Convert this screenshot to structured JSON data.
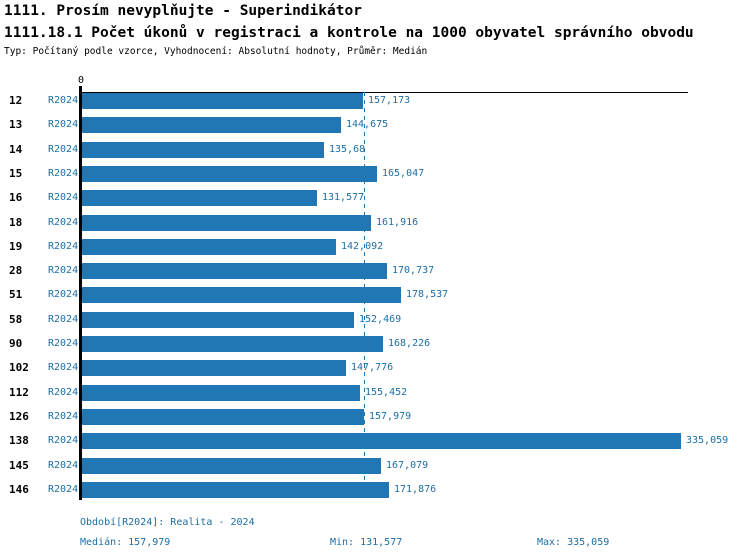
{
  "chart_data": {
    "type": "bar",
    "orientation": "horizontal",
    "title": "1111. Prosím nevyplňujte - Superindikátor",
    "subtitle": "1111.18.1 Počet úkonů v registraci a kontrole na 1000 obyvatel správního obvodu",
    "meta_line": "Typ: Počítaný podle vzorce, Vyhodnocení: Absolutní hodnoty, Průměr: Medián",
    "axis_zero_label": "0",
    "grid": false,
    "legend": "none",
    "xlim": [
      0,
      340
    ],
    "categories": [
      "12",
      "13",
      "14",
      "15",
      "16",
      "18",
      "19",
      "28",
      "51",
      "58",
      "90",
      "102",
      "112",
      "126",
      "138",
      "145",
      "146"
    ],
    "series": [
      {
        "name": "R2024",
        "values": [
          157.173,
          144.675,
          135.68,
          165.047,
          131.577,
          161.916,
          142.092,
          170.737,
          178.537,
          152.469,
          168.226,
          147.776,
          155.452,
          157.979,
          335.059,
          167.079,
          171.876
        ]
      }
    ],
    "value_labels": [
      "157,173",
      "144,675",
      "135,68",
      "165,047",
      "131,577",
      "161,916",
      "142,092",
      "170,737",
      "178,537",
      "152,469",
      "168,226",
      "147,776",
      "155,452",
      "157,979",
      "335,059",
      "167,079",
      "171,876"
    ],
    "row_period_label": "R2024",
    "median_value": 157.979,
    "annotations": {
      "period": "Období[R2024]: Realita - 2024",
      "median": "Medián: 157,979",
      "min": "Min: 131,577",
      "max": "Max: 335,059"
    },
    "colors": {
      "bar": "#2177b3",
      "label_text": "#1c6ea4",
      "axis": "#000000",
      "median_line": "#2177b3"
    }
  }
}
